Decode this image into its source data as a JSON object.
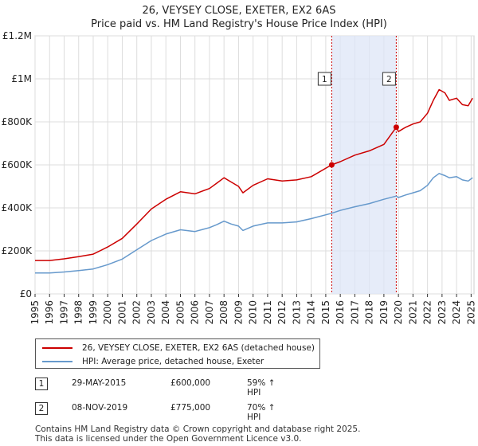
{
  "chart_data": {
    "type": "line",
    "title": "26, VEYSEY CLOSE, EXETER, EX2 6AS",
    "subtitle": "Price paid vs. HM Land Registry's House Price Index (HPI)",
    "xlabel": "",
    "ylabel": "",
    "xlim": [
      1995,
      2025.2
    ],
    "ylim": [
      0,
      1200000
    ],
    "x_ticks": [
      "1995",
      "1996",
      "1997",
      "1998",
      "1999",
      "2000",
      "2001",
      "2002",
      "2003",
      "2004",
      "2005",
      "2006",
      "2007",
      "2008",
      "2009",
      "2010",
      "2011",
      "2012",
      "2013",
      "2014",
      "2015",
      "2016",
      "2017",
      "2018",
      "2019",
      "2020",
      "2021",
      "2022",
      "2023",
      "2024",
      "2025"
    ],
    "y_ticks": [
      {
        "value": 0,
        "label": "£0"
      },
      {
        "value": 200000,
        "label": "£200K"
      },
      {
        "value": 400000,
        "label": "£400K"
      },
      {
        "value": 600000,
        "label": "£600K"
      },
      {
        "value": 800000,
        "label": "£800K"
      },
      {
        "value": 1000000,
        "label": "£1M"
      },
      {
        "value": 1200000,
        "label": "£1.2M"
      }
    ],
    "grid": true,
    "series": [
      {
        "name": "26, VEYSEY CLOSE, EXETER, EX2 6AS (detached house)",
        "color": "#cc0000",
        "x": [
          1995,
          1996,
          1997,
          1998,
          1999,
          2000,
          2001,
          2002,
          2003,
          2004,
          2005,
          2006,
          2007,
          2007.5,
          2008,
          2008.5,
          2009,
          2009.3,
          2010,
          2011,
          2012,
          2013,
          2014,
          2015.4,
          2016,
          2017,
          2018,
          2019,
          2019.85,
          2020,
          2020.5,
          2021,
          2021.5,
          2022,
          2022.4,
          2022.8,
          2023.2,
          2023.5,
          2024,
          2024.4,
          2024.8,
          2025.1
        ],
        "values": [
          155000,
          155000,
          163000,
          173000,
          185000,
          218000,
          258000,
          325000,
          395000,
          440000,
          475000,
          465000,
          490000,
          515000,
          540000,
          520000,
          500000,
          470000,
          505000,
          535000,
          525000,
          530000,
          545000,
          600000,
          615000,
          645000,
          665000,
          695000,
          775000,
          755000,
          775000,
          790000,
          800000,
          840000,
          900000,
          950000,
          935000,
          900000,
          910000,
          880000,
          875000,
          910000
        ]
      },
      {
        "name": "HPI: Average price, detached house, Exeter",
        "color": "#6699cc",
        "x": [
          1995,
          1996,
          1997,
          1998,
          1999,
          2000,
          2001,
          2002,
          2003,
          2004,
          2005,
          2006,
          2007,
          2007.5,
          2008,
          2008.5,
          2009,
          2009.3,
          2010,
          2011,
          2012,
          2013,
          2014,
          2015.4,
          2016,
          2017,
          2018,
          2019,
          2019.85,
          2020,
          2020.5,
          2021,
          2021.5,
          2022,
          2022.4,
          2022.8,
          2023.2,
          2023.5,
          2024,
          2024.4,
          2024.8,
          2025.1
        ],
        "values": [
          97000,
          97000,
          102000,
          108000,
          116000,
          136000,
          162000,
          205000,
          248000,
          278000,
          298000,
          290000,
          308000,
          322000,
          338000,
          325000,
          315000,
          295000,
          315000,
          330000,
          330000,
          335000,
          350000,
          375000,
          388000,
          405000,
          420000,
          440000,
          455000,
          448000,
          460000,
          470000,
          480000,
          505000,
          540000,
          560000,
          550000,
          540000,
          545000,
          530000,
          525000,
          540000
        ]
      }
    ],
    "sales": [
      {
        "id": "1",
        "x": 2015.41,
        "date": "29-MAY-2015",
        "price_value": 600000,
        "price": "£600,000",
        "hpi": "59% ↑ HPI"
      },
      {
        "id": "2",
        "x": 2019.85,
        "date": "08-NOV-2019",
        "price_value": 775000,
        "price": "£775,000",
        "hpi": "70% ↑ HPI"
      }
    ],
    "highlight_band": {
      "from": 2015.41,
      "to": 2019.85,
      "color": "#dde6f7"
    },
    "marker_color": "#cc0000",
    "box_label_value": 1000000
  },
  "legend": {
    "entries": [
      {
        "label": "26, VEYSEY CLOSE, EXETER, EX2 6AS (detached house)",
        "color": "#cc0000"
      },
      {
        "label": "HPI: Average price, detached house, Exeter",
        "color": "#6699cc"
      }
    ]
  },
  "footer": {
    "line1": "Contains HM Land Registry data © Crown copyright and database right 2025.",
    "line2": "This data is licensed under the Open Government Licence v3.0."
  }
}
